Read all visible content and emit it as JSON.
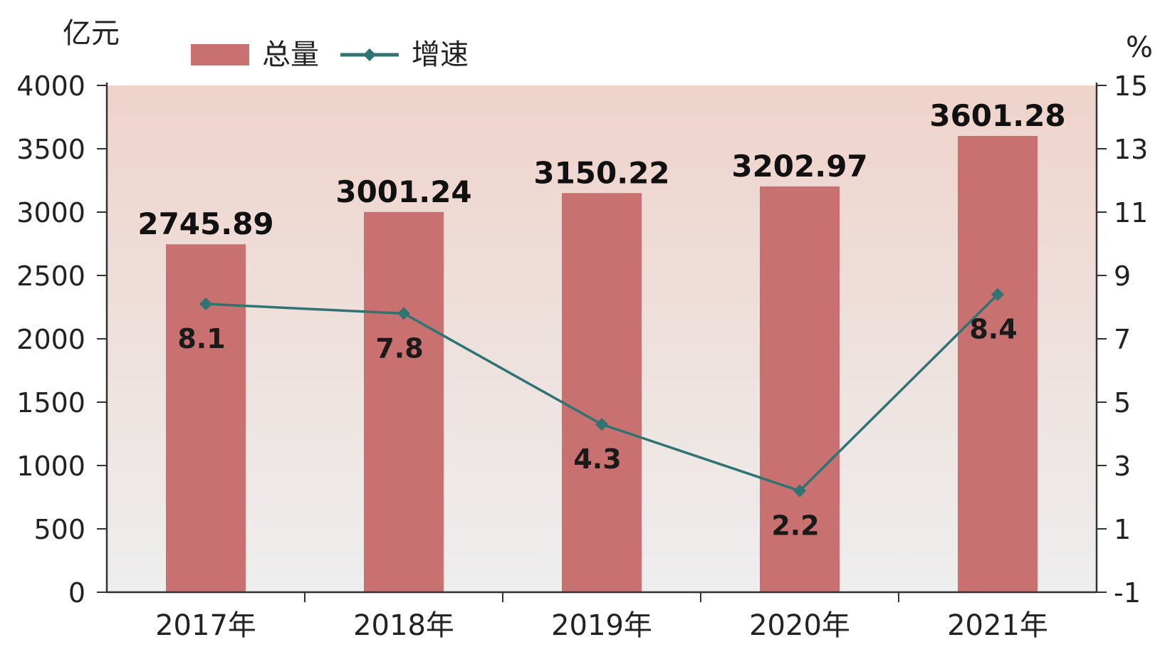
{
  "chart_data": {
    "type": "bar",
    "categories": [
      "2017年",
      "2018年",
      "2019年",
      "2020年",
      "2021年"
    ],
    "series": [
      {
        "name": "总量",
        "type": "bar",
        "axis": "left",
        "values": [
          2745.89,
          3001.24,
          3150.22,
          3202.97,
          3601.28
        ],
        "labels": [
          "2745.89",
          "3001.24",
          "3150.22",
          "3202.97",
          "3601.28"
        ],
        "color": "#c97070"
      },
      {
        "name": "增速",
        "type": "line",
        "axis": "right",
        "values": [
          8.1,
          7.8,
          4.3,
          2.2,
          8.4
        ],
        "labels": [
          "8.1",
          "7.8",
          "4.3",
          "2.2",
          "8.4"
        ],
        "color": "#2f7372"
      }
    ],
    "y_left": {
      "unit": "亿元",
      "ylim": [
        0,
        4000
      ],
      "ticks": [
        "0",
        "500",
        "1000",
        "1500",
        "2000",
        "2500",
        "3000",
        "3500",
        "4000"
      ]
    },
    "y_right": {
      "unit": "%",
      "ylim": [
        -1,
        15
      ],
      "ticks": [
        "-1",
        "1",
        "3",
        "5",
        "7",
        "9",
        "11",
        "13",
        "15"
      ]
    },
    "legend": {
      "placement": "top-left",
      "items": [
        {
          "label": "总量",
          "kind": "bar",
          "color": "#c97070"
        },
        {
          "label": "增速",
          "kind": "line",
          "color": "#2f7372"
        }
      ]
    },
    "grid": false,
    "background_gradient": [
      "#efd3cb",
      "#eeeeee"
    ]
  }
}
